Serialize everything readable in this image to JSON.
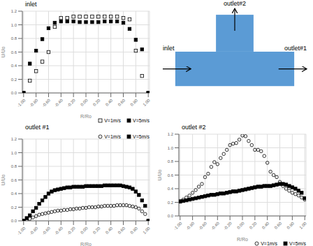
{
  "chart_data": [
    {
      "type": "scatter",
      "title": "inlet",
      "x_label": "R/Ro",
      "y_label": "U/Uo",
      "xlim": [
        -1.02,
        1.02
      ],
      "ylim": [
        0.0,
        1.2
      ],
      "xticks": [
        {
          "value": -1.0,
          "label": "-1.00"
        },
        {
          "value": -0.8,
          "label": "-0.80"
        },
        {
          "value": -0.6,
          "label": "-0.60"
        },
        {
          "value": -0.4,
          "label": "-0.40"
        },
        {
          "value": -0.2,
          "label": "-0.20"
        },
        {
          "value": 0.0,
          "label": "0.00"
        },
        {
          "value": 0.2,
          "label": "0.20"
        },
        {
          "value": 0.4,
          "label": "0.40"
        },
        {
          "value": 0.6,
          "label": "0.60"
        },
        {
          "value": 0.8,
          "label": "0.80"
        },
        {
          "value": 1.0,
          "label": "1.00"
        }
      ],
      "yticks": [
        {
          "value": 0.0,
          "label": "0.0"
        },
        0.2,
        0.4,
        0.6,
        0.8,
        {
          "value": 1.0,
          "label": "1.0"
        },
        1.2
      ],
      "grid": true,
      "legend": "lower right",
      "series": [
        {
          "name": "V=1m/s",
          "color": "#000000",
          "marker": "square-open",
          "x": [
            -1.0,
            -0.9,
            -0.8,
            -0.7,
            -0.6,
            -0.5,
            -0.4,
            -0.3,
            -0.2,
            -0.1,
            0.0,
            0.1,
            0.2,
            0.3,
            0.4,
            0.5,
            0.6,
            0.7,
            0.8,
            0.9,
            1.0
          ],
          "values": [
            0.0,
            0.18,
            0.32,
            0.46,
            0.6,
            0.97,
            1.1,
            1.1,
            1.12,
            1.12,
            1.12,
            1.12,
            1.12,
            1.12,
            1.12,
            1.12,
            1.1,
            1.08,
            0.62,
            0.25,
            0.0
          ]
        },
        {
          "name": "V=5m/s",
          "color": "#000000",
          "marker": "square",
          "x": [
            -1.0,
            -0.9,
            -0.8,
            -0.7,
            -0.6,
            -0.5,
            -0.4,
            -0.3,
            -0.2,
            -0.1,
            0.0,
            0.1,
            0.2,
            0.3,
            0.4,
            0.5,
            0.6,
            0.7,
            0.8,
            0.9,
            1.0
          ],
          "values": [
            0.0,
            0.43,
            0.62,
            0.79,
            0.95,
            1.03,
            1.05,
            1.05,
            1.05,
            1.04,
            1.04,
            1.04,
            1.04,
            1.05,
            1.05,
            1.05,
            1.03,
            0.94,
            0.78,
            0.64,
            0.0
          ]
        }
      ]
    },
    {
      "type": "diagram",
      "color": "#5b9bd5",
      "annotations": [
        "outlet#2",
        "inlet",
        "outlet#1"
      ]
    },
    {
      "type": "scatter",
      "title": "outlet #1",
      "x_label": "R/Ro",
      "y_label": "U/Uo",
      "xlim": [
        -1.02,
        1.02
      ],
      "ylim": [
        0.0,
        1.2
      ],
      "xticks": [
        {
          "value": -1.0,
          "label": "-1.00"
        },
        {
          "value": -0.8,
          "label": "-0.80"
        },
        {
          "value": -0.6,
          "label": "-0.60"
        },
        {
          "value": -0.4,
          "label": "-0.40"
        },
        {
          "value": -0.2,
          "label": "-0.20"
        },
        {
          "value": 0.0,
          "label": "0.00"
        },
        {
          "value": 0.2,
          "label": "0.20"
        },
        {
          "value": 0.4,
          "label": "0.40"
        },
        {
          "value": 0.6,
          "label": "0.60"
        },
        {
          "value": 0.8,
          "label": "0.80"
        },
        {
          "value": 1.0,
          "label": "1.00"
        }
      ],
      "yticks": [
        {
          "value": 0.0,
          "label": "0.0"
        },
        0.2,
        0.4,
        0.6,
        0.8,
        {
          "value": 1.0,
          "label": "1.0"
        },
        1.2
      ],
      "grid": true,
      "legend": "upper right",
      "series": [
        {
          "name": "V=1m/s",
          "color": "#000000",
          "marker": "circle-open",
          "x": [
            -1.0,
            -0.95,
            -0.9,
            -0.85,
            -0.8,
            -0.75,
            -0.7,
            -0.65,
            -0.6,
            -0.55,
            -0.5,
            -0.45,
            -0.4,
            -0.35,
            -0.3,
            -0.25,
            -0.2,
            -0.15,
            -0.1,
            -0.05,
            0.0,
            0.05,
            0.1,
            0.15,
            0.2,
            0.25,
            0.3,
            0.35,
            0.4,
            0.45,
            0.5,
            0.55,
            0.6,
            0.65,
            0.7,
            0.75,
            0.8,
            0.85,
            0.9,
            0.95,
            1.0
          ],
          "values": [
            0.0,
            0.01,
            0.03,
            0.05,
            0.07,
            0.09,
            0.1,
            0.11,
            0.12,
            0.13,
            0.14,
            0.15,
            0.15,
            0.16,
            0.16,
            0.17,
            0.17,
            0.18,
            0.18,
            0.19,
            0.19,
            0.2,
            0.2,
            0.2,
            0.21,
            0.21,
            0.22,
            0.22,
            0.22,
            0.22,
            0.23,
            0.23,
            0.23,
            0.23,
            0.22,
            0.21,
            0.2,
            0.18,
            0.14,
            0.1,
            0.0
          ]
        },
        {
          "name": "V=5m/s",
          "color": "#000000",
          "marker": "square",
          "x": [
            -1.0,
            -0.95,
            -0.9,
            -0.85,
            -0.8,
            -0.75,
            -0.7,
            -0.65,
            -0.6,
            -0.55,
            -0.5,
            -0.45,
            -0.4,
            -0.35,
            -0.3,
            -0.25,
            -0.2,
            -0.15,
            -0.1,
            -0.05,
            0.0,
            0.05,
            0.1,
            0.15,
            0.2,
            0.25,
            0.3,
            0.35,
            0.4,
            0.45,
            0.5,
            0.55,
            0.6,
            0.65,
            0.7,
            0.75,
            0.8,
            0.85,
            0.9,
            0.95,
            1.0
          ],
          "values": [
            0.0,
            0.04,
            0.08,
            0.14,
            0.19,
            0.25,
            0.3,
            0.35,
            0.4,
            0.43,
            0.45,
            0.46,
            0.47,
            0.48,
            0.49,
            0.49,
            0.5,
            0.5,
            0.5,
            0.5,
            0.51,
            0.51,
            0.51,
            0.51,
            0.51,
            0.51,
            0.52,
            0.52,
            0.52,
            0.52,
            0.52,
            0.52,
            0.51,
            0.5,
            0.49,
            0.47,
            0.43,
            0.38,
            0.3,
            0.22,
            0.0
          ]
        }
      ]
    },
    {
      "type": "scatter",
      "title": "outlet #2",
      "x_label": "R/Ro",
      "y_label": "U/Uo",
      "xlim": [
        -1.02,
        1.02
      ],
      "ylim": [
        0.0,
        1.2
      ],
      "xticks": [
        {
          "value": -1.0,
          "label": "-1.00"
        },
        {
          "value": -0.8,
          "label": "-0.80"
        },
        {
          "value": -0.6,
          "label": "-0.60"
        },
        {
          "value": -0.4,
          "label": "-0.40"
        },
        {
          "value": -0.2,
          "label": "-0.20"
        },
        {
          "value": 0.0,
          "label": "0.00"
        },
        {
          "value": 0.2,
          "label": "0.20"
        },
        {
          "value": 0.4,
          "label": "0.40"
        },
        {
          "value": 0.6,
          "label": "0.60"
        },
        {
          "value": 0.8,
          "label": "0.80"
        },
        {
          "value": 1.0,
          "label": "1.00"
        }
      ],
      "yticks": [
        {
          "value": 0.0,
          "label": "0.0"
        },
        0.2,
        0.4,
        0.6,
        0.8,
        {
          "value": 1.0,
          "label": "1.0"
        },
        1.2
      ],
      "grid": true,
      "legend": "lower right",
      "series": [
        {
          "name": "V=1m/s",
          "color": "#000000",
          "marker": "circle-open",
          "x": [
            -1.0,
            -0.95,
            -0.9,
            -0.85,
            -0.8,
            -0.75,
            -0.7,
            -0.65,
            -0.6,
            -0.55,
            -0.5,
            -0.45,
            -0.4,
            -0.35,
            -0.3,
            -0.25,
            -0.2,
            -0.15,
            -0.1,
            -0.05,
            0.0,
            0.05,
            0.1,
            0.15,
            0.2,
            0.25,
            0.3,
            0.35,
            0.4,
            0.45,
            0.5,
            0.55,
            0.6,
            0.65,
            0.7,
            0.75,
            0.8,
            0.85,
            0.9,
            0.95,
            1.0
          ],
          "values": [
            0.22,
            0.24,
            0.27,
            0.3,
            0.34,
            0.38,
            0.43,
            0.47,
            0.57,
            0.62,
            0.72,
            0.79,
            0.76,
            0.85,
            0.91,
            0.97,
            1.04,
            1.06,
            1.07,
            1.12,
            1.18,
            1.17,
            1.1,
            1.04,
            0.97,
            0.97,
            0.95,
            0.88,
            0.78,
            0.65,
            0.6,
            0.57,
            0.5,
            0.44,
            0.4,
            0.37,
            0.34,
            0.32,
            0.3,
            0.27,
            0.24
          ]
        },
        {
          "name": "V=5m/s",
          "color": "#000000",
          "marker": "square",
          "x": [
            -1.0,
            -0.95,
            -0.9,
            -0.85,
            -0.8,
            -0.75,
            -0.7,
            -0.65,
            -0.6,
            -0.55,
            -0.5,
            -0.45,
            -0.4,
            -0.35,
            -0.3,
            -0.25,
            -0.2,
            -0.15,
            -0.1,
            -0.05,
            0.0,
            0.05,
            0.1,
            0.15,
            0.2,
            0.25,
            0.3,
            0.35,
            0.4,
            0.45,
            0.5,
            0.55,
            0.6,
            0.65,
            0.7,
            0.75,
            0.8,
            0.85,
            0.9,
            0.95,
            1.0
          ],
          "values": [
            0.21,
            0.22,
            0.23,
            0.24,
            0.25,
            0.26,
            0.27,
            0.28,
            0.29,
            0.3,
            0.31,
            0.31,
            0.32,
            0.33,
            0.33,
            0.34,
            0.35,
            0.36,
            0.36,
            0.37,
            0.38,
            0.39,
            0.4,
            0.41,
            0.42,
            0.43,
            0.43,
            0.44,
            0.44,
            0.44,
            0.45,
            0.46,
            0.47,
            0.47,
            0.46,
            0.44,
            0.42,
            0.4,
            0.37,
            0.34,
            0.26
          ]
        }
      ]
    }
  ]
}
